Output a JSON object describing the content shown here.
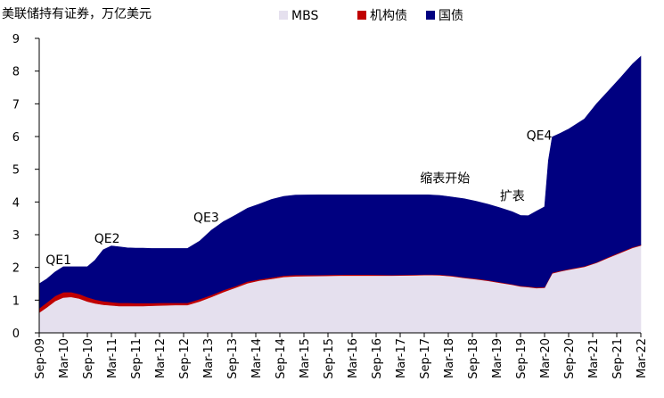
{
  "chart_data": {
    "type": "area",
    "stacked": true,
    "title": "",
    "unit_label": "美联储持有证券，万亿美元",
    "xlabel": "",
    "ylabel": "",
    "ylim": [
      0,
      9
    ],
    "yticks": [
      "0",
      "1",
      "2",
      "3",
      "4",
      "5",
      "6",
      "7",
      "8",
      "9"
    ],
    "grid": false,
    "legend_position": "top",
    "categories": [
      "Sep-09",
      "Mar-10",
      "Sep-10",
      "Mar-11",
      "Sep-11",
      "Mar-12",
      "Sep-12",
      "Mar-13",
      "Sep-13",
      "Mar-14",
      "Sep-14",
      "Mar-15",
      "Sep-15",
      "Mar-16",
      "Sep-16",
      "Mar-17",
      "Sep-17",
      "Mar-18",
      "Sep-18",
      "Mar-19",
      "Sep-19",
      "Mar-20",
      "Sep-20",
      "Mar-21",
      "Sep-21",
      "Mar-22"
    ],
    "x": [
      2009.67,
      2009.83,
      2010.0,
      2010.17,
      2010.33,
      2010.5,
      2010.67,
      2010.83,
      2011.0,
      2011.17,
      2011.33,
      2011.5,
      2011.67,
      2011.83,
      2012.0,
      2012.25,
      2012.5,
      2012.75,
      2013.0,
      2013.25,
      2013.5,
      2013.75,
      2014.0,
      2014.25,
      2014.5,
      2014.75,
      2015.0,
      2015.5,
      2016.0,
      2016.5,
      2017.0,
      2017.5,
      2017.75,
      2018.0,
      2018.25,
      2018.5,
      2018.75,
      2019.0,
      2019.25,
      2019.5,
      2019.67,
      2019.83,
      2020.0,
      2020.17,
      2020.25,
      2020.33,
      2020.5,
      2020.67,
      2021.0,
      2021.25,
      2021.5,
      2021.75,
      2022.0,
      2022.17
    ],
    "series": [
      {
        "name": "MBS",
        "color": "#E5E0EE",
        "values": [
          0.62,
          0.78,
          0.97,
          1.08,
          1.1,
          1.05,
          0.96,
          0.9,
          0.86,
          0.84,
          0.82,
          0.82,
          0.82,
          0.82,
          0.83,
          0.84,
          0.85,
          0.85,
          0.96,
          1.1,
          1.25,
          1.38,
          1.52,
          1.6,
          1.65,
          1.71,
          1.73,
          1.74,
          1.75,
          1.75,
          1.75,
          1.76,
          1.77,
          1.76,
          1.73,
          1.68,
          1.64,
          1.59,
          1.53,
          1.47,
          1.42,
          1.4,
          1.37,
          1.38,
          1.6,
          1.82,
          1.88,
          1.93,
          2.02,
          2.14,
          2.3,
          2.45,
          2.6,
          2.67
        ]
      },
      {
        "name": "机构债",
        "color": "#C00000",
        "values": [
          0.13,
          0.15,
          0.16,
          0.16,
          0.15,
          0.14,
          0.13,
          0.12,
          0.11,
          0.1,
          0.1,
          0.1,
          0.09,
          0.09,
          0.08,
          0.08,
          0.07,
          0.07,
          0.07,
          0.06,
          0.06,
          0.05,
          0.05,
          0.04,
          0.04,
          0.04,
          0.04,
          0.03,
          0.03,
          0.03,
          0.02,
          0.02,
          0.02,
          0.02,
          0.02,
          0.02,
          0.02,
          0.02,
          0.02,
          0.02,
          0.02,
          0.02,
          0.02,
          0.02,
          0.02,
          0.02,
          0.02,
          0.02,
          0.02,
          0.02,
          0.02,
          0.02,
          0.02,
          0.02
        ]
      },
      {
        "name": "国债",
        "color": "#000080",
        "values": [
          0.75,
          0.72,
          0.73,
          0.78,
          0.77,
          0.83,
          0.93,
          1.2,
          1.57,
          1.72,
          1.71,
          1.68,
          1.68,
          1.68,
          1.67,
          1.66,
          1.66,
          1.66,
          1.77,
          1.98,
          2.09,
          2.17,
          2.24,
          2.3,
          2.39,
          2.42,
          2.44,
          2.45,
          2.44,
          2.44,
          2.45,
          2.44,
          2.43,
          2.42,
          2.4,
          2.4,
          2.36,
          2.32,
          2.27,
          2.21,
          2.15,
          2.16,
          2.33,
          2.45,
          3.65,
          4.15,
          4.2,
          4.28,
          4.5,
          4.84,
          5.08,
          5.33,
          5.6,
          5.76
        ]
      }
    ],
    "annotations": [
      {
        "text": "QE1",
        "x": 2010.07,
        "y": 2.1
      },
      {
        "text": "QE2",
        "x": 2011.08,
        "y": 2.75
      },
      {
        "text": "QE3",
        "x": 2013.14,
        "y": 3.4
      },
      {
        "text": "缩表开始",
        "x": 2018.1,
        "y": 4.6
      },
      {
        "text": "扩表",
        "x": 2019.5,
        "y": 4.05
      },
      {
        "text": "QE4",
        "x": 2020.06,
        "y": 5.9
      }
    ]
  }
}
